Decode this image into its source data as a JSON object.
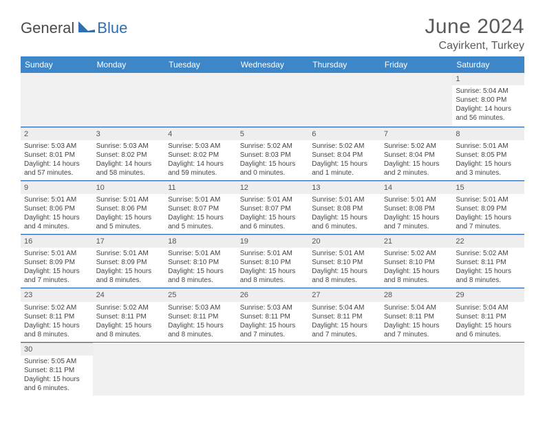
{
  "brand": {
    "text1": "General",
    "text2": "Blue",
    "sail_color": "#2f6fb0"
  },
  "title": "June 2024",
  "location": "Cayirkent, Turkey",
  "colors": {
    "header_bg": "#3d87c9",
    "header_fg": "#ffffff",
    "row_divider": "#2f6fb0",
    "daynum_bg": "#eeeeee",
    "text": "#444444"
  },
  "weekdays": [
    "Sunday",
    "Monday",
    "Tuesday",
    "Wednesday",
    "Thursday",
    "Friday",
    "Saturday"
  ],
  "days": {
    "1": {
      "sunrise": "5:04 AM",
      "sunset": "8:00 PM",
      "daylight": "14 hours and 56 minutes."
    },
    "2": {
      "sunrise": "5:03 AM",
      "sunset": "8:01 PM",
      "daylight": "14 hours and 57 minutes."
    },
    "3": {
      "sunrise": "5:03 AM",
      "sunset": "8:02 PM",
      "daylight": "14 hours and 58 minutes."
    },
    "4": {
      "sunrise": "5:03 AM",
      "sunset": "8:02 PM",
      "daylight": "14 hours and 59 minutes."
    },
    "5": {
      "sunrise": "5:02 AM",
      "sunset": "8:03 PM",
      "daylight": "15 hours and 0 minutes."
    },
    "6": {
      "sunrise": "5:02 AM",
      "sunset": "8:04 PM",
      "daylight": "15 hours and 1 minute."
    },
    "7": {
      "sunrise": "5:02 AM",
      "sunset": "8:04 PM",
      "daylight": "15 hours and 2 minutes."
    },
    "8": {
      "sunrise": "5:01 AM",
      "sunset": "8:05 PM",
      "daylight": "15 hours and 3 minutes."
    },
    "9": {
      "sunrise": "5:01 AM",
      "sunset": "8:06 PM",
      "daylight": "15 hours and 4 minutes."
    },
    "10": {
      "sunrise": "5:01 AM",
      "sunset": "8:06 PM",
      "daylight": "15 hours and 5 minutes."
    },
    "11": {
      "sunrise": "5:01 AM",
      "sunset": "8:07 PM",
      "daylight": "15 hours and 5 minutes."
    },
    "12": {
      "sunrise": "5:01 AM",
      "sunset": "8:07 PM",
      "daylight": "15 hours and 6 minutes."
    },
    "13": {
      "sunrise": "5:01 AM",
      "sunset": "8:08 PM",
      "daylight": "15 hours and 6 minutes."
    },
    "14": {
      "sunrise": "5:01 AM",
      "sunset": "8:08 PM",
      "daylight": "15 hours and 7 minutes."
    },
    "15": {
      "sunrise": "5:01 AM",
      "sunset": "8:09 PM",
      "daylight": "15 hours and 7 minutes."
    },
    "16": {
      "sunrise": "5:01 AM",
      "sunset": "8:09 PM",
      "daylight": "15 hours and 7 minutes."
    },
    "17": {
      "sunrise": "5:01 AM",
      "sunset": "8:09 PM",
      "daylight": "15 hours and 8 minutes."
    },
    "18": {
      "sunrise": "5:01 AM",
      "sunset": "8:10 PM",
      "daylight": "15 hours and 8 minutes."
    },
    "19": {
      "sunrise": "5:01 AM",
      "sunset": "8:10 PM",
      "daylight": "15 hours and 8 minutes."
    },
    "20": {
      "sunrise": "5:01 AM",
      "sunset": "8:10 PM",
      "daylight": "15 hours and 8 minutes."
    },
    "21": {
      "sunrise": "5:02 AM",
      "sunset": "8:10 PM",
      "daylight": "15 hours and 8 minutes."
    },
    "22": {
      "sunrise": "5:02 AM",
      "sunset": "8:11 PM",
      "daylight": "15 hours and 8 minutes."
    },
    "23": {
      "sunrise": "5:02 AM",
      "sunset": "8:11 PM",
      "daylight": "15 hours and 8 minutes."
    },
    "24": {
      "sunrise": "5:02 AM",
      "sunset": "8:11 PM",
      "daylight": "15 hours and 8 minutes."
    },
    "25": {
      "sunrise": "5:03 AM",
      "sunset": "8:11 PM",
      "daylight": "15 hours and 8 minutes."
    },
    "26": {
      "sunrise": "5:03 AM",
      "sunset": "8:11 PM",
      "daylight": "15 hours and 7 minutes."
    },
    "27": {
      "sunrise": "5:04 AM",
      "sunset": "8:11 PM",
      "daylight": "15 hours and 7 minutes."
    },
    "28": {
      "sunrise": "5:04 AM",
      "sunset": "8:11 PM",
      "daylight": "15 hours and 7 minutes."
    },
    "29": {
      "sunrise": "5:04 AM",
      "sunset": "8:11 PM",
      "daylight": "15 hours and 6 minutes."
    },
    "30": {
      "sunrise": "5:05 AM",
      "sunset": "8:11 PM",
      "daylight": "15 hours and 6 minutes."
    }
  },
  "labels": {
    "sunrise": "Sunrise:",
    "sunset": "Sunset:",
    "daylight": "Daylight:"
  },
  "layout": {
    "grid": [
      [
        0,
        0,
        0,
        0,
        0,
        0,
        1
      ],
      [
        2,
        3,
        4,
        5,
        6,
        7,
        8
      ],
      [
        9,
        10,
        11,
        12,
        13,
        14,
        15
      ],
      [
        16,
        17,
        18,
        19,
        20,
        21,
        22
      ],
      [
        23,
        24,
        25,
        26,
        27,
        28,
        29
      ],
      [
        30,
        0,
        0,
        0,
        0,
        0,
        0
      ]
    ]
  }
}
